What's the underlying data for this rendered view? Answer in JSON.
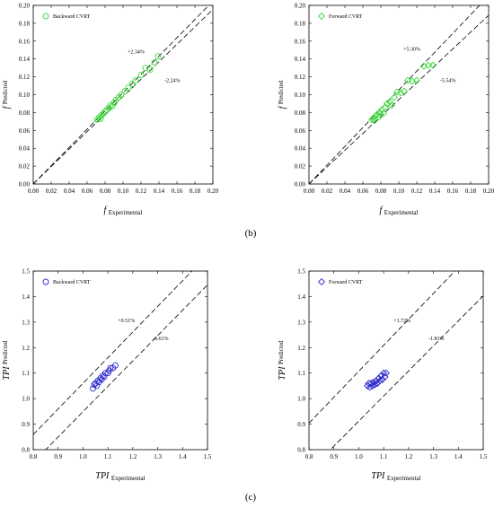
{
  "chart_data": [
    {
      "type": "scatter",
      "panel": "b",
      "xlabel_main": "f",
      "xlabel_sub": "Experimental",
      "ylabel_main": "f",
      "ylabel_sub": "Predicted",
      "xlim": [
        0,
        0.2
      ],
      "ylim": [
        0,
        0.2
      ],
      "xticks": [
        "0.00",
        "0.02",
        "0.04",
        "0.06",
        "0.08",
        "0.10",
        "0.12",
        "0.14",
        "0.16",
        "0.18",
        "0.20"
      ],
      "yticks": [
        "0.00",
        "0.02",
        "0.04",
        "0.06",
        "0.08",
        "0.10",
        "0.12",
        "0.14",
        "0.16",
        "0.18",
        "0.20"
      ],
      "marker": "circle",
      "color": "#33dd33",
      "legend": "Backward CVRT",
      "bands": [
        {
          "label": "+2.34%",
          "slope": 1.0234
        },
        {
          "label": "-2.24%",
          "slope": 0.9776
        }
      ],
      "annotations": [
        {
          "text": "+2.34%",
          "x": 0.105,
          "y": 0.146
        },
        {
          "text": "-2.24%",
          "x": 0.146,
          "y": 0.114
        }
      ],
      "points": [
        [
          0.071,
          0.072
        ],
        [
          0.073,
          0.074
        ],
        [
          0.075,
          0.073
        ],
        [
          0.076,
          0.077
        ],
        [
          0.078,
          0.079
        ],
        [
          0.08,
          0.081
        ],
        [
          0.082,
          0.083
        ],
        [
          0.084,
          0.085
        ],
        [
          0.086,
          0.088
        ],
        [
          0.088,
          0.087
        ],
        [
          0.09,
          0.091
        ],
        [
          0.092,
          0.094
        ],
        [
          0.095,
          0.097
        ],
        [
          0.098,
          0.1
        ],
        [
          0.102,
          0.104
        ],
        [
          0.106,
          0.108
        ],
        [
          0.11,
          0.112
        ],
        [
          0.114,
          0.116
        ],
        [
          0.12,
          0.122
        ],
        [
          0.125,
          0.13
        ],
        [
          0.13,
          0.128
        ],
        [
          0.135,
          0.136
        ],
        [
          0.139,
          0.143
        ]
      ]
    },
    {
      "type": "scatter",
      "panel": "b",
      "xlabel_main": "f",
      "xlabel_sub": "Experimental",
      "ylabel_main": "f",
      "ylabel_sub": "Predicted",
      "xlim": [
        0,
        0.2
      ],
      "ylim": [
        0,
        0.2
      ],
      "xticks": [
        "0.00",
        "0.02",
        "0.04",
        "0.06",
        "0.08",
        "0.10",
        "0.12",
        "0.14",
        "0.16",
        "0.18",
        "0.20"
      ],
      "yticks": [
        "0.00",
        "0.02",
        "0.04",
        "0.06",
        "0.08",
        "0.10",
        "0.12",
        "0.14",
        "0.16",
        "0.18",
        "0.20"
      ],
      "marker": "diamond",
      "color": "#33dd33",
      "legend": "Forward CVRT",
      "bands": [
        {
          "label": "+5.30%",
          "slope": 1.053
        },
        {
          "label": "-5.54%",
          "slope": 0.9446
        }
      ],
      "annotations": [
        {
          "text": "+5.30%",
          "x": 0.105,
          "y": 0.149
        },
        {
          "text": "-5.54%",
          "x": 0.146,
          "y": 0.114
        }
      ],
      "points": [
        [
          0.07,
          0.072
        ],
        [
          0.072,
          0.074
        ],
        [
          0.073,
          0.071
        ],
        [
          0.074,
          0.076
        ],
        [
          0.076,
          0.078
        ],
        [
          0.078,
          0.075
        ],
        [
          0.079,
          0.08
        ],
        [
          0.081,
          0.083
        ],
        [
          0.083,
          0.079
        ],
        [
          0.085,
          0.086
        ],
        [
          0.087,
          0.09
        ],
        [
          0.09,
          0.092
        ],
        [
          0.092,
          0.088
        ],
        [
          0.095,
          0.097
        ],
        [
          0.098,
          0.103
        ],
        [
          0.102,
          0.102
        ],
        [
          0.106,
          0.104
        ],
        [
          0.11,
          0.116
        ],
        [
          0.115,
          0.115
        ],
        [
          0.12,
          0.116
        ],
        [
          0.128,
          0.132
        ],
        [
          0.133,
          0.133
        ],
        [
          0.138,
          0.133
        ]
      ]
    },
    {
      "type": "scatter",
      "panel": "c",
      "xlabel_main": "TPI",
      "xlabel_sub": "Experimental",
      "ylabel_main": "TPI",
      "ylabel_sub": "Predicted",
      "xlim": [
        0.8,
        1.5
      ],
      "ylim": [
        0.8,
        1.5
      ],
      "xticks": [
        "0.8",
        "0.9",
        "1.0",
        "1.1",
        "1.2",
        "1.3",
        "1.4",
        "1.5"
      ],
      "yticks": [
        "0.8",
        "0.9",
        "1.0",
        "1.1",
        "1.2",
        "1.3",
        "1.4",
        "1.5"
      ],
      "marker": "circle",
      "color": "#2a2acc",
      "legend": "Backward CVRT",
      "bands": [
        {
          "label": "+0.51%",
          "slope": 1.0051
        },
        {
          "label": "-0.61%",
          "slope": 0.9939
        }
      ],
      "line_offsets": [
        0.055,
        -0.045
      ],
      "annotations": [
        {
          "text": "+0.51%",
          "x": 1.14,
          "y": 1.3
        },
        {
          "text": "-0.61%",
          "x": 1.28,
          "y": 1.23
        }
      ],
      "points": [
        [
          1.04,
          1.04
        ],
        [
          1.045,
          1.055
        ],
        [
          1.05,
          1.06
        ],
        [
          1.055,
          1.05
        ],
        [
          1.06,
          1.07
        ],
        [
          1.065,
          1.065
        ],
        [
          1.07,
          1.08
        ],
        [
          1.075,
          1.075
        ],
        [
          1.08,
          1.09
        ],
        [
          1.085,
          1.085
        ],
        [
          1.09,
          1.1
        ],
        [
          1.1,
          1.1
        ],
        [
          1.105,
          1.11
        ],
        [
          1.11,
          1.12
        ],
        [
          1.12,
          1.12
        ],
        [
          1.13,
          1.13
        ]
      ]
    },
    {
      "type": "scatter",
      "panel": "c",
      "xlabel_main": "TPI",
      "xlabel_sub": "Experimental",
      "ylabel_main": "TPI",
      "ylabel_sub": "Predicted",
      "xlim": [
        0.8,
        1.5
      ],
      "ylim": [
        0.8,
        1.5
      ],
      "xticks": [
        "0.8",
        "0.9",
        "1.0",
        "1.1",
        "1.2",
        "1.3",
        "1.4",
        "1.5"
      ],
      "yticks": [
        "0.8",
        "0.9",
        "1.0",
        "1.1",
        "1.2",
        "1.3",
        "1.4",
        "1.5"
      ],
      "marker": "diamond",
      "color": "#2a2acc",
      "legend": "Forward CVRT",
      "bands": [
        {
          "label": "+1.72%",
          "slope": 1.0172
        },
        {
          "label": "-1.81%",
          "slope": 0.9819
        }
      ],
      "line_offsets": [
        0.09,
        -0.07
      ],
      "annotations": [
        {
          "text": "+1.72%",
          "x": 1.14,
          "y": 1.3
        },
        {
          "text": "-1.81%",
          "x": 1.28,
          "y": 1.23
        }
      ],
      "points": [
        [
          1.035,
          1.05
        ],
        [
          1.04,
          1.06
        ],
        [
          1.045,
          1.045
        ],
        [
          1.05,
          1.06
        ],
        [
          1.055,
          1.05
        ],
        [
          1.06,
          1.065
        ],
        [
          1.065,
          1.055
        ],
        [
          1.07,
          1.07
        ],
        [
          1.075,
          1.06
        ],
        [
          1.08,
          1.08
        ],
        [
          1.085,
          1.07
        ],
        [
          1.09,
          1.09
        ],
        [
          1.095,
          1.075
        ],
        [
          1.1,
          1.1
        ],
        [
          1.105,
          1.085
        ],
        [
          1.11,
          1.1
        ]
      ]
    }
  ],
  "panel_labels": {
    "b": "(b)",
    "c": "(c)"
  }
}
